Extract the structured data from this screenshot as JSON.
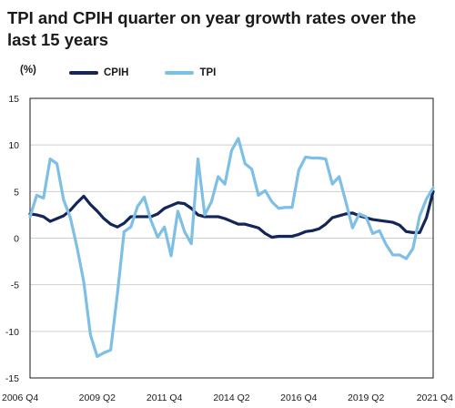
{
  "chart_data": {
    "type": "line",
    "title": "TPI and CPIH quarter on year growth rates over the last 15 years",
    "ylabel": "(%)",
    "ylim": [
      -15,
      15
    ],
    "yticks": [
      15,
      10,
      5,
      0,
      -5,
      -10,
      -15
    ],
    "x_labels": [
      "2006 Q4",
      "2009 Q2",
      "2011 Q4",
      "2014 Q2",
      "2016 Q4",
      "2019 Q2",
      "2021 Q4"
    ],
    "x_count": 61,
    "x_label_indices": [
      0,
      10,
      20,
      30,
      40,
      50,
      60
    ],
    "grid": "horizontal",
    "legend_position": "top",
    "series": [
      {
        "name": "CPIH",
        "color": "#14255a",
        "values": [
          2.6,
          2.5,
          2.3,
          1.8,
          2.1,
          2.4,
          3.0,
          3.8,
          4.5,
          3.6,
          2.9,
          2.1,
          1.5,
          1.2,
          1.6,
          2.3,
          2.3,
          2.3,
          2.3,
          2.6,
          3.2,
          3.5,
          3.8,
          3.7,
          3.2,
          2.5,
          2.3,
          2.3,
          2.3,
          2.1,
          1.8,
          1.5,
          1.5,
          1.3,
          1.1,
          0.5,
          0.1,
          0.2,
          0.2,
          0.2,
          0.4,
          0.7,
          0.8,
          1.0,
          1.5,
          2.2,
          2.4,
          2.6,
          2.7,
          2.4,
          2.2,
          2.0,
          1.9,
          1.8,
          1.7,
          1.4,
          0.7,
          0.6,
          0.6,
          2.2,
          5.0
        ]
      },
      {
        "name": "TPI",
        "color": "#7ebfe6",
        "values": [
          2.3,
          4.6,
          4.3,
          8.5,
          8.0,
          4.1,
          2.2,
          -1.0,
          -4.7,
          -10.4,
          -12.7,
          -12.3,
          -12.0,
          -6.0,
          0.7,
          1.2,
          3.4,
          4.4,
          1.9,
          0.1,
          1.2,
          -1.9,
          2.9,
          0.7,
          -0.6,
          8.5,
          2.5,
          3.9,
          6.6,
          5.8,
          9.4,
          10.7,
          8.0,
          7.4,
          4.6,
          5.1,
          3.9,
          3.2,
          3.3,
          3.3,
          7.3,
          8.7,
          8.6,
          8.6,
          8.5,
          5.8,
          6.6,
          3.9,
          1.1,
          2.6,
          2.3,
          0.5,
          0.8,
          -0.7,
          -1.8,
          -1.8,
          -2.2,
          -1.1,
          2.4,
          4.2,
          5.4
        ]
      }
    ]
  }
}
